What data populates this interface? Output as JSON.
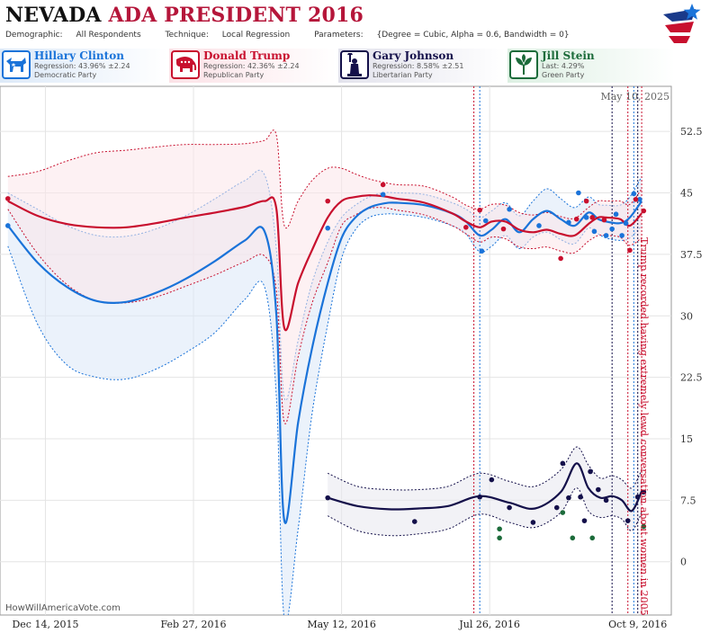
{
  "header": {
    "title_state": "NEVADA",
    "title_rest": "ADA PRESIDENT 2016",
    "demographic_label": "Demographic:",
    "demographic_value": "All Respondents",
    "technique_label": "Technique:",
    "technique_value": "Local Regression",
    "parameters_label": "Parameters:",
    "parameters_value": "{Degree = Cubic, Alpha = 0.6, Bandwidth = 0}"
  },
  "candidates": [
    {
      "name": "Hillary Clinton",
      "stat": "Regression: 43.96% ±2.24",
      "party": "Democratic Party",
      "color": "#1a73d9",
      "icon": "donkey-icon"
    },
    {
      "name": "Donald Trump",
      "stat": "Regression: 42.36% ±2.24",
      "party": "Republican Party",
      "color": "#c8102e",
      "icon": "elephant-icon"
    },
    {
      "name": "Gary Johnson",
      "stat": "Regression: 8.58% ±2.51",
      "party": "Libertarian Party",
      "color": "#14104a",
      "icon": "statue-of-liberty-icon"
    },
    {
      "name": "Jill Stein",
      "stat": "Last: 4.29%",
      "party": "Green Party",
      "color": "#1c6b3a",
      "icon": "leaf-icon"
    }
  ],
  "footer": {
    "date_stamp": "May 10, 2025",
    "site": "HowWillAmericaVote.com",
    "annotation": "Trump recorded having extremely lewd conversation about women in 2005"
  },
  "chart_data": {
    "type": "line",
    "title": "NEVADA ADA PRESIDENT 2016",
    "x_start": "2015-11-21",
    "x_end": "2016-10-26",
    "xlim": [
      "2015-11-21",
      "2016-10-26"
    ],
    "ylim": [
      -6.5,
      58
    ],
    "y_ticks": [
      0,
      7.5,
      15,
      22.5,
      30,
      37.5,
      45,
      52.5
    ],
    "y_tick_labels": [
      "0",
      "7.5",
      "15",
      "22.5",
      "30",
      "37.5",
      "45",
      "52.5"
    ],
    "x_tick_dates": [
      "2015-12-14",
      "2016-02-27",
      "2016-05-12",
      "2016-07-26",
      "2016-10-09"
    ],
    "x_tick_labels": [
      "Dec 14, 2015",
      "Feb 27, 2016",
      "May 12, 2016",
      "Jul 26, 2016",
      "Oct 9, 2016"
    ],
    "grid": true,
    "event_lines": [
      {
        "date": "2016-07-18",
        "color": "#c8102e"
      },
      {
        "date": "2016-07-21",
        "color": "#1a73d9"
      },
      {
        "date": "2016-09-26",
        "color": "#14104a"
      },
      {
        "date": "2016-10-04",
        "color": "#c8102e"
      },
      {
        "date": "2016-10-07",
        "color": "#1a73d9"
      },
      {
        "date": "2016-10-09",
        "color": "#14104a"
      },
      {
        "date": "2016-10-11",
        "color": "#c8102e"
      }
    ],
    "series": [
      {
        "name": "Hillary Clinton",
        "color": "#1a73d9",
        "band_fill": "#dbe8f7",
        "x": [
          "2015-11-25",
          "2015-12-10",
          "2015-12-25",
          "2016-01-09",
          "2016-01-24",
          "2016-02-08",
          "2016-02-23",
          "2016-03-09",
          "2016-03-24",
          "2016-04-03",
          "2016-04-09",
          "2016-04-13",
          "2016-04-20",
          "2016-04-27",
          "2016-05-05",
          "2016-05-12",
          "2016-05-19",
          "2016-05-26",
          "2016-06-02",
          "2016-06-09",
          "2016-06-23",
          "2016-07-07",
          "2016-07-14",
          "2016-07-21",
          "2016-07-27",
          "2016-08-03",
          "2016-08-10",
          "2016-08-17",
          "2016-08-24",
          "2016-08-31",
          "2016-09-07",
          "2016-09-14",
          "2016-09-19",
          "2016-09-23",
          "2016-09-30",
          "2016-10-05",
          "2016-10-11"
        ],
        "y": [
          41.0,
          36.5,
          33.5,
          31.8,
          31.7,
          32.8,
          34.5,
          36.7,
          39.2,
          40.3,
          30.0,
          5.0,
          17.0,
          26.0,
          34.0,
          39.5,
          42.0,
          43.2,
          43.7,
          43.8,
          43.5,
          42.5,
          41.5,
          39.8,
          40.5,
          41.8,
          40.2,
          41.8,
          42.8,
          41.8,
          41.0,
          42.6,
          41.8,
          41.5,
          41.3,
          42.0,
          44.0
        ],
        "upper": [
          45.0,
          43.0,
          41.0,
          39.8,
          39.7,
          40.6,
          42.2,
          44.3,
          46.5,
          47.2,
          38.0,
          20.0,
          27.0,
          34.0,
          39.0,
          42.0,
          43.5,
          44.5,
          45.0,
          45.0,
          44.8,
          43.8,
          43.0,
          42.0,
          42.8,
          43.8,
          42.2,
          44.0,
          45.5,
          44.3,
          43.2,
          44.5,
          43.6,
          43.5,
          43.5,
          44.5,
          47.0
        ],
        "lower": [
          38.5,
          29.0,
          24.0,
          22.5,
          22.3,
          23.5,
          25.5,
          28.0,
          32.0,
          33.5,
          20.0,
          -7.0,
          4.0,
          18.0,
          29.0,
          37.0,
          40.5,
          42.0,
          42.4,
          42.4,
          42.0,
          41.0,
          40.0,
          37.8,
          38.5,
          39.8,
          38.2,
          39.6,
          40.2,
          39.3,
          38.8,
          40.7,
          40.0,
          39.5,
          39.2,
          39.5,
          41.0
        ],
        "points": [
          [
            "2015-11-25",
            41.0
          ],
          [
            "2016-05-05",
            40.7
          ],
          [
            "2016-06-02",
            44.8
          ],
          [
            "2016-07-22",
            37.9
          ],
          [
            "2016-07-24",
            41.6
          ],
          [
            "2016-08-05",
            43.0
          ],
          [
            "2016-08-20",
            41.0
          ],
          [
            "2016-09-04",
            41.4
          ],
          [
            "2016-09-09",
            45.0
          ],
          [
            "2016-09-13",
            42.0
          ],
          [
            "2016-09-17",
            40.3
          ],
          [
            "2016-09-23",
            39.8
          ],
          [
            "2016-09-26",
            40.6
          ],
          [
            "2016-09-28",
            42.4
          ],
          [
            "2016-10-01",
            39.8
          ],
          [
            "2016-10-03",
            41.3
          ],
          [
            "2016-10-07",
            44.9
          ],
          [
            "2016-10-10",
            44.2
          ]
        ]
      },
      {
        "name": "Donald Trump",
        "color": "#c8102e",
        "band_fill": "#fbe6ea",
        "x": [
          "2015-11-25",
          "2015-12-10",
          "2015-12-25",
          "2016-01-09",
          "2016-01-24",
          "2016-02-08",
          "2016-02-23",
          "2016-03-09",
          "2016-03-24",
          "2016-04-03",
          "2016-04-09",
          "2016-04-13",
          "2016-04-20",
          "2016-04-27",
          "2016-05-05",
          "2016-05-12",
          "2016-05-19",
          "2016-05-26",
          "2016-06-02",
          "2016-06-09",
          "2016-06-23",
          "2016-07-07",
          "2016-07-14",
          "2016-07-21",
          "2016-07-27",
          "2016-08-03",
          "2016-08-10",
          "2016-08-17",
          "2016-08-24",
          "2016-08-31",
          "2016-09-07",
          "2016-09-14",
          "2016-09-19",
          "2016-09-23",
          "2016-09-30",
          "2016-10-05",
          "2016-10-11"
        ],
        "y": [
          44.0,
          42.2,
          41.2,
          40.8,
          40.8,
          41.3,
          42.0,
          42.6,
          43.3,
          44.0,
          43.0,
          28.5,
          34.0,
          38.0,
          42.0,
          44.0,
          44.5,
          44.7,
          44.6,
          44.3,
          43.8,
          42.5,
          41.5,
          40.8,
          41.5,
          41.5,
          40.5,
          40.2,
          40.5,
          40.0,
          39.8,
          41.2,
          42.0,
          42.0,
          41.8,
          41.0,
          42.5
        ],
        "upper": [
          47.0,
          47.6,
          48.9,
          49.9,
          50.2,
          50.6,
          50.9,
          50.9,
          51.0,
          51.4,
          52.0,
          41.0,
          44.0,
          46.5,
          48.0,
          48.0,
          47.3,
          46.7,
          46.3,
          46.0,
          45.8,
          44.5,
          43.5,
          43.0,
          43.6,
          43.5,
          42.6,
          42.3,
          42.6,
          42.1,
          41.9,
          43.2,
          44.0,
          44.0,
          44.0,
          43.6,
          45.5
        ],
        "lower": [
          43.0,
          37.6,
          33.8,
          31.8,
          31.6,
          32.3,
          33.6,
          35.0,
          36.6,
          37.3,
          33.0,
          17.0,
          25.0,
          31.5,
          36.5,
          41.0,
          42.3,
          43.1,
          43.2,
          42.9,
          42.3,
          41.0,
          40.0,
          39.0,
          39.6,
          39.4,
          38.4,
          38.2,
          38.4,
          37.9,
          37.7,
          39.1,
          39.8,
          39.8,
          39.6,
          38.6,
          39.5
        ],
        "points": [
          [
            "2015-11-25",
            44.3
          ],
          [
            "2016-05-05",
            44.0
          ],
          [
            "2016-06-02",
            46.0
          ],
          [
            "2016-07-14",
            40.8
          ],
          [
            "2016-07-21",
            42.9
          ],
          [
            "2016-08-02",
            40.6
          ],
          [
            "2016-08-31",
            37.0
          ],
          [
            "2016-09-08",
            41.8
          ],
          [
            "2016-09-13",
            44.0
          ],
          [
            "2016-09-16",
            42.0
          ],
          [
            "2016-09-22",
            41.7
          ],
          [
            "2016-10-05",
            38.0
          ],
          [
            "2016-10-08",
            44.2
          ],
          [
            "2016-10-12",
            42.8
          ]
        ]
      },
      {
        "name": "Gary Johnson",
        "color": "#14104a",
        "band_fill": "#e8e8ef",
        "x": [
          "2016-05-05",
          "2016-05-20",
          "2016-06-05",
          "2016-06-20",
          "2016-07-05",
          "2016-07-21",
          "2016-08-05",
          "2016-08-18",
          "2016-08-31",
          "2016-09-08",
          "2016-09-14",
          "2016-09-20",
          "2016-09-26",
          "2016-10-01",
          "2016-10-06",
          "2016-10-11"
        ],
        "y": [
          7.8,
          6.8,
          6.4,
          6.5,
          6.8,
          8.0,
          7.2,
          6.5,
          8.5,
          12.0,
          9.0,
          7.8,
          8.0,
          7.5,
          6.2,
          8.6
        ],
        "upper": [
          10.8,
          9.2,
          8.8,
          8.8,
          9.2,
          10.8,
          9.8,
          9.2,
          11.2,
          14.0,
          11.8,
          10.2,
          10.5,
          10.0,
          9.0,
          11.2
        ],
        "lower": [
          5.6,
          3.8,
          3.2,
          3.4,
          4.0,
          5.8,
          4.8,
          4.2,
          6.0,
          9.0,
          6.2,
          5.4,
          5.6,
          5.2,
          3.8,
          6.0
        ],
        "points": [
          [
            "2016-05-05",
            7.8
          ],
          [
            "2016-06-18",
            4.9
          ],
          [
            "2016-07-21",
            7.9
          ],
          [
            "2016-07-27",
            10.0
          ],
          [
            "2016-08-05",
            6.6
          ],
          [
            "2016-08-17",
            4.8
          ],
          [
            "2016-08-29",
            6.6
          ],
          [
            "2016-09-01",
            12.0
          ],
          [
            "2016-09-04",
            7.8
          ],
          [
            "2016-09-10",
            7.9
          ],
          [
            "2016-09-12",
            5.0
          ],
          [
            "2016-09-15",
            11.0
          ],
          [
            "2016-09-19",
            8.8
          ],
          [
            "2016-09-23",
            7.5
          ],
          [
            "2016-10-04",
            5.0
          ],
          [
            "2016-10-09",
            7.9
          ],
          [
            "2016-10-12",
            8.5
          ]
        ]
      },
      {
        "name": "Jill Stein",
        "color": "#1c6b3a",
        "band_fill": "none",
        "points": [
          [
            "2016-07-31",
            2.9
          ],
          [
            "2016-07-31",
            4.0
          ],
          [
            "2016-09-01",
            6.0
          ],
          [
            "2016-09-06",
            2.9
          ],
          [
            "2016-09-16",
            2.9
          ],
          [
            "2016-10-12",
            4.3
          ]
        ]
      }
    ]
  }
}
